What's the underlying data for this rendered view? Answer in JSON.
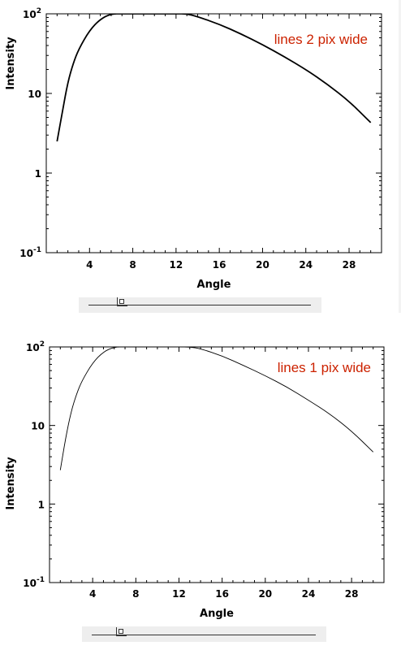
{
  "chart_data": [
    {
      "type": "line",
      "ylabel": "Intensity",
      "xlabel": "Angle",
      "annotation": "lines 2 pix wide",
      "y_scale": "log",
      "ylim": [
        0.1,
        100
      ],
      "xlim": [
        0,
        31
      ],
      "x_ticks": [
        4,
        8,
        12,
        16,
        20,
        24,
        28
      ],
      "y_ticks": [
        {
          "value": 0.1,
          "base": "10",
          "exp": "-1"
        },
        {
          "value": 1,
          "base": "1",
          "exp": ""
        },
        {
          "value": 10,
          "base": "10",
          "exp": ""
        },
        {
          "value": 100,
          "base": "10",
          "exp": "2"
        }
      ],
      "series": [
        {
          "x": [
            1,
            1.5,
            2,
            2.5,
            3,
            4,
            5,
            6,
            7,
            8,
            10,
            12,
            13,
            14,
            16,
            18,
            20,
            22,
            24,
            26,
            28,
            30
          ],
          "y": [
            2.5,
            6,
            14,
            24,
            36,
            62,
            86,
            100,
            100,
            100,
            100,
            100,
            100,
            92,
            74,
            56,
            41,
            29,
            20,
            13,
            8,
            4.3
          ]
        }
      ]
    },
    {
      "type": "line",
      "ylabel": "Intensity",
      "xlabel": "Angle",
      "annotation": "lines 1 pix wide",
      "y_scale": "log",
      "ylim": [
        0.1,
        100
      ],
      "xlim": [
        0,
        31
      ],
      "x_ticks": [
        4,
        8,
        12,
        16,
        20,
        24,
        28
      ],
      "y_ticks": [
        {
          "value": 0.1,
          "base": "10",
          "exp": "-1"
        },
        {
          "value": 1,
          "base": "1",
          "exp": ""
        },
        {
          "value": 10,
          "base": "10",
          "exp": ""
        },
        {
          "value": 100,
          "base": "10",
          "exp": "2"
        }
      ],
      "series": [
        {
          "x": [
            1,
            1.5,
            2,
            2.5,
            3,
            4,
            5,
            6,
            7,
            8,
            10,
            12,
            13,
            14,
            16,
            18,
            20,
            22,
            24,
            26,
            28,
            30
          ],
          "y": [
            2.7,
            7,
            15,
            25,
            37,
            63,
            87,
            100,
            100,
            100,
            100,
            100,
            100,
            95,
            77,
            58,
            43,
            31,
            21,
            14,
            8.5,
            4.6
          ]
        }
      ]
    }
  ],
  "sliders": [
    {
      "value_fraction": 0.15
    },
    {
      "value_fraction": 0.13
    }
  ]
}
